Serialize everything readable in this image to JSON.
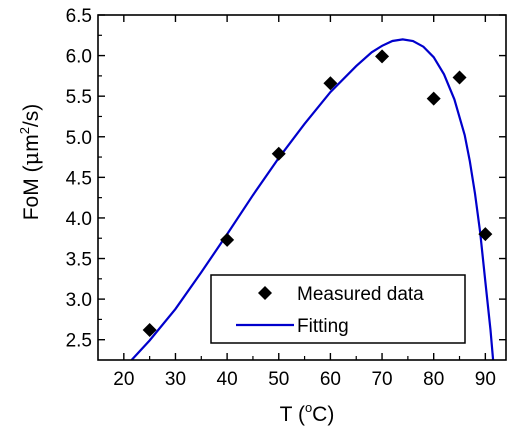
{
  "chart_data": {
    "type": "scatter",
    "title": "",
    "xlabel": {
      "base": "T (",
      "sup": "o",
      "tail": "C)"
    },
    "ylabel": {
      "base": "FoM (",
      "mu": "μ",
      "unit": "m",
      "sup": "2",
      "tail": "/s)"
    },
    "xlim": [
      15,
      94
    ],
    "ylim": [
      2.25,
      6.5
    ],
    "xticks": [
      20,
      30,
      40,
      50,
      60,
      70,
      80,
      90
    ],
    "yticks": [
      "2.5",
      "3.0",
      "3.5",
      "4.0",
      "4.5",
      "5.0",
      "5.5",
      "6.0",
      "6.5"
    ],
    "grid": false,
    "legend_position": "bottom-right",
    "series": [
      {
        "name": "Measured data",
        "kind": "scatter",
        "marker": "diamond",
        "color": "#000000",
        "points": [
          [
            25,
            2.62
          ],
          [
            40,
            3.73
          ],
          [
            50,
            4.79
          ],
          [
            60,
            5.66
          ],
          [
            70,
            5.99
          ],
          [
            80,
            5.47
          ],
          [
            85,
            5.73
          ],
          [
            90,
            3.8
          ]
        ]
      },
      {
        "name": "Fitting",
        "kind": "line",
        "color": "#0000cc",
        "points": [
          [
            21.5,
            2.25
          ],
          [
            25,
            2.49
          ],
          [
            30,
            2.88
          ],
          [
            35,
            3.33
          ],
          [
            40,
            3.8
          ],
          [
            45,
            4.28
          ],
          [
            50,
            4.74
          ],
          [
            55,
            5.16
          ],
          [
            60,
            5.55
          ],
          [
            65,
            5.87
          ],
          [
            68,
            6.04
          ],
          [
            70,
            6.12
          ],
          [
            72,
            6.18
          ],
          [
            74,
            6.2
          ],
          [
            76,
            6.18
          ],
          [
            78,
            6.11
          ],
          [
            80,
            5.98
          ],
          [
            82,
            5.77
          ],
          [
            84,
            5.46
          ],
          [
            86,
            5.02
          ],
          [
            87,
            4.7
          ],
          [
            88,
            4.3
          ],
          [
            89,
            3.82
          ],
          [
            90,
            3.22
          ],
          [
            91,
            2.62
          ],
          [
            91.5,
            2.25
          ]
        ]
      }
    ]
  }
}
